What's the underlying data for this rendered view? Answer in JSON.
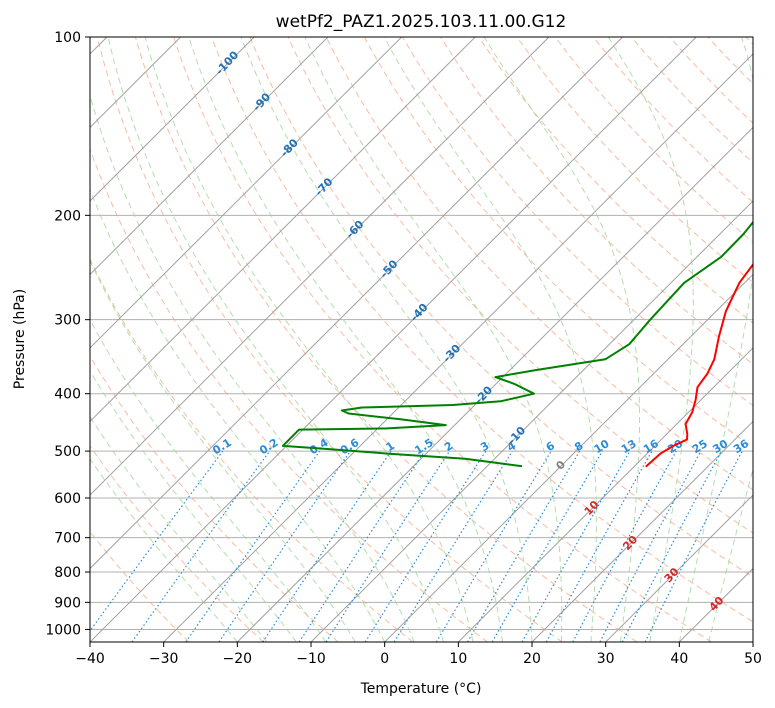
{
  "chart_data": {
    "type": "line",
    "title": "wetPf2_PAZ1.2025.103.11.00.G12",
    "xlabel": "Temperature (°C)",
    "ylabel": "Pressure (hPa)",
    "xlim": [
      -40,
      50
    ],
    "ylim": [
      1050,
      100
    ],
    "y_scale": "log",
    "grid": true,
    "x_ticks": [
      -40,
      -30,
      -20,
      -10,
      0,
      10,
      20,
      30,
      40,
      50
    ],
    "x_tick_labels": [
      "−40",
      "−30",
      "−20",
      "−10",
      "0",
      "10",
      "20",
      "30",
      "40",
      "50"
    ],
    "y_ticks": [
      1000,
      900,
      800,
      700,
      600,
      500,
      400,
      300,
      200,
      100
    ],
    "y_tick_labels": [
      "1000",
      "900",
      "800",
      "700",
      "600",
      "500",
      "400",
      "300",
      "200",
      "100"
    ],
    "series": [
      {
        "role": "temperature",
        "color": "#ff0000",
        "points": [
          {
            "p": 530,
            "t": 11.6
          },
          {
            "p": 505,
            "t": 11.8
          },
          {
            "p": 490,
            "t": 12.5
          },
          {
            "p": 478,
            "t": 13.5
          },
          {
            "p": 468,
            "t": 12.8
          },
          {
            "p": 450,
            "t": 11.2
          },
          {
            "p": 430,
            "t": 10.5
          },
          {
            "p": 410,
            "t": 9.3
          },
          {
            "p": 390,
            "t": 7.8
          },
          {
            "p": 370,
            "t": 7.3
          },
          {
            "p": 350,
            "t": 6.3
          },
          {
            "p": 320,
            "t": 3.8
          },
          {
            "p": 290,
            "t": 1.3
          },
          {
            "p": 260,
            "t": -0.7
          },
          {
            "p": 235,
            "t": -1.6
          },
          {
            "p": 210,
            "t": -1.2
          },
          {
            "p": 190,
            "t": 0.6
          },
          {
            "p": 170,
            "t": 5.3
          },
          {
            "p": 150,
            "t": 8.8
          },
          {
            "p": 133,
            "t": 10.8
          },
          {
            "p": 123,
            "t": 13.6
          },
          {
            "p": 115,
            "t": 15.8
          },
          {
            "p": 107,
            "t": 17.5
          },
          {
            "p": 100,
            "t": 18.9
          }
        ]
      },
      {
        "role": "dewpoint",
        "color": "#008000",
        "points": [
          {
            "p": 530,
            "t": -5.4
          },
          {
            "p": 515,
            "t": -14.0
          },
          {
            "p": 505,
            "t": -25.0
          },
          {
            "p": 495,
            "t": -35.0
          },
          {
            "p": 490,
            "t": -40.5
          },
          {
            "p": 460,
            "t": -40.5
          },
          {
            "p": 458,
            "t": -29.0
          },
          {
            "p": 452,
            "t": -21.2
          },
          {
            "p": 442,
            "t": -28.0
          },
          {
            "p": 432,
            "t": -36.0
          },
          {
            "p": 427,
            "t": -37.3
          },
          {
            "p": 422,
            "t": -35.0
          },
          {
            "p": 418,
            "t": -23.0
          },
          {
            "p": 412,
            "t": -17.0
          },
          {
            "p": 400,
            "t": -13.5
          },
          {
            "p": 385,
            "t": -17.5
          },
          {
            "p": 375,
            "t": -21.0
          },
          {
            "p": 365,
            "t": -16.5
          },
          {
            "p": 350,
            "t": -8.5
          },
          {
            "p": 330,
            "t": -7.3
          },
          {
            "p": 300,
            "t": -7.8
          },
          {
            "p": 260,
            "t": -8.2
          },
          {
            "p": 235,
            "t": -6.7
          },
          {
            "p": 215,
            "t": -6.8
          },
          {
            "p": 180,
            "t": -8.0
          },
          {
            "p": 160,
            "t": -8.3
          },
          {
            "p": 140,
            "t": -7.0
          },
          {
            "p": 125,
            "t": -5.0
          },
          {
            "p": 115,
            "t": -3.0
          },
          {
            "p": 105,
            "t": 0.8
          },
          {
            "p": 100,
            "t": 2.0
          }
        ]
      }
    ],
    "isotherm_labels": [
      "-100",
      "-90",
      "-80",
      "-70",
      "-60",
      "-50",
      "-40",
      "-30",
      "-20",
      "-10",
      "0",
      "10",
      "20",
      "30",
      "40"
    ],
    "mixing_ratio_labels": [
      "0.1",
      "0.2",
      "0.4",
      "0.6",
      "1",
      "1.5",
      "2",
      "3",
      "4",
      "6",
      "8",
      "10",
      "13",
      "16",
      "20",
      "25",
      "30",
      "36"
    ],
    "colors": {
      "temperature": "#ff0000",
      "dewpoint": "#008000",
      "grid": "#b0b0b0",
      "skew_isotherm": "#a0a0a0",
      "dry_adiabat": "#f4a582",
      "moist_adiabat": "#a6d8a0",
      "mixing_ratio": "#2b8cd6",
      "label_cold": "#2171b5",
      "label_warm": "#d62728",
      "label_zero": "#808080",
      "tan": "#d2b48c"
    }
  }
}
